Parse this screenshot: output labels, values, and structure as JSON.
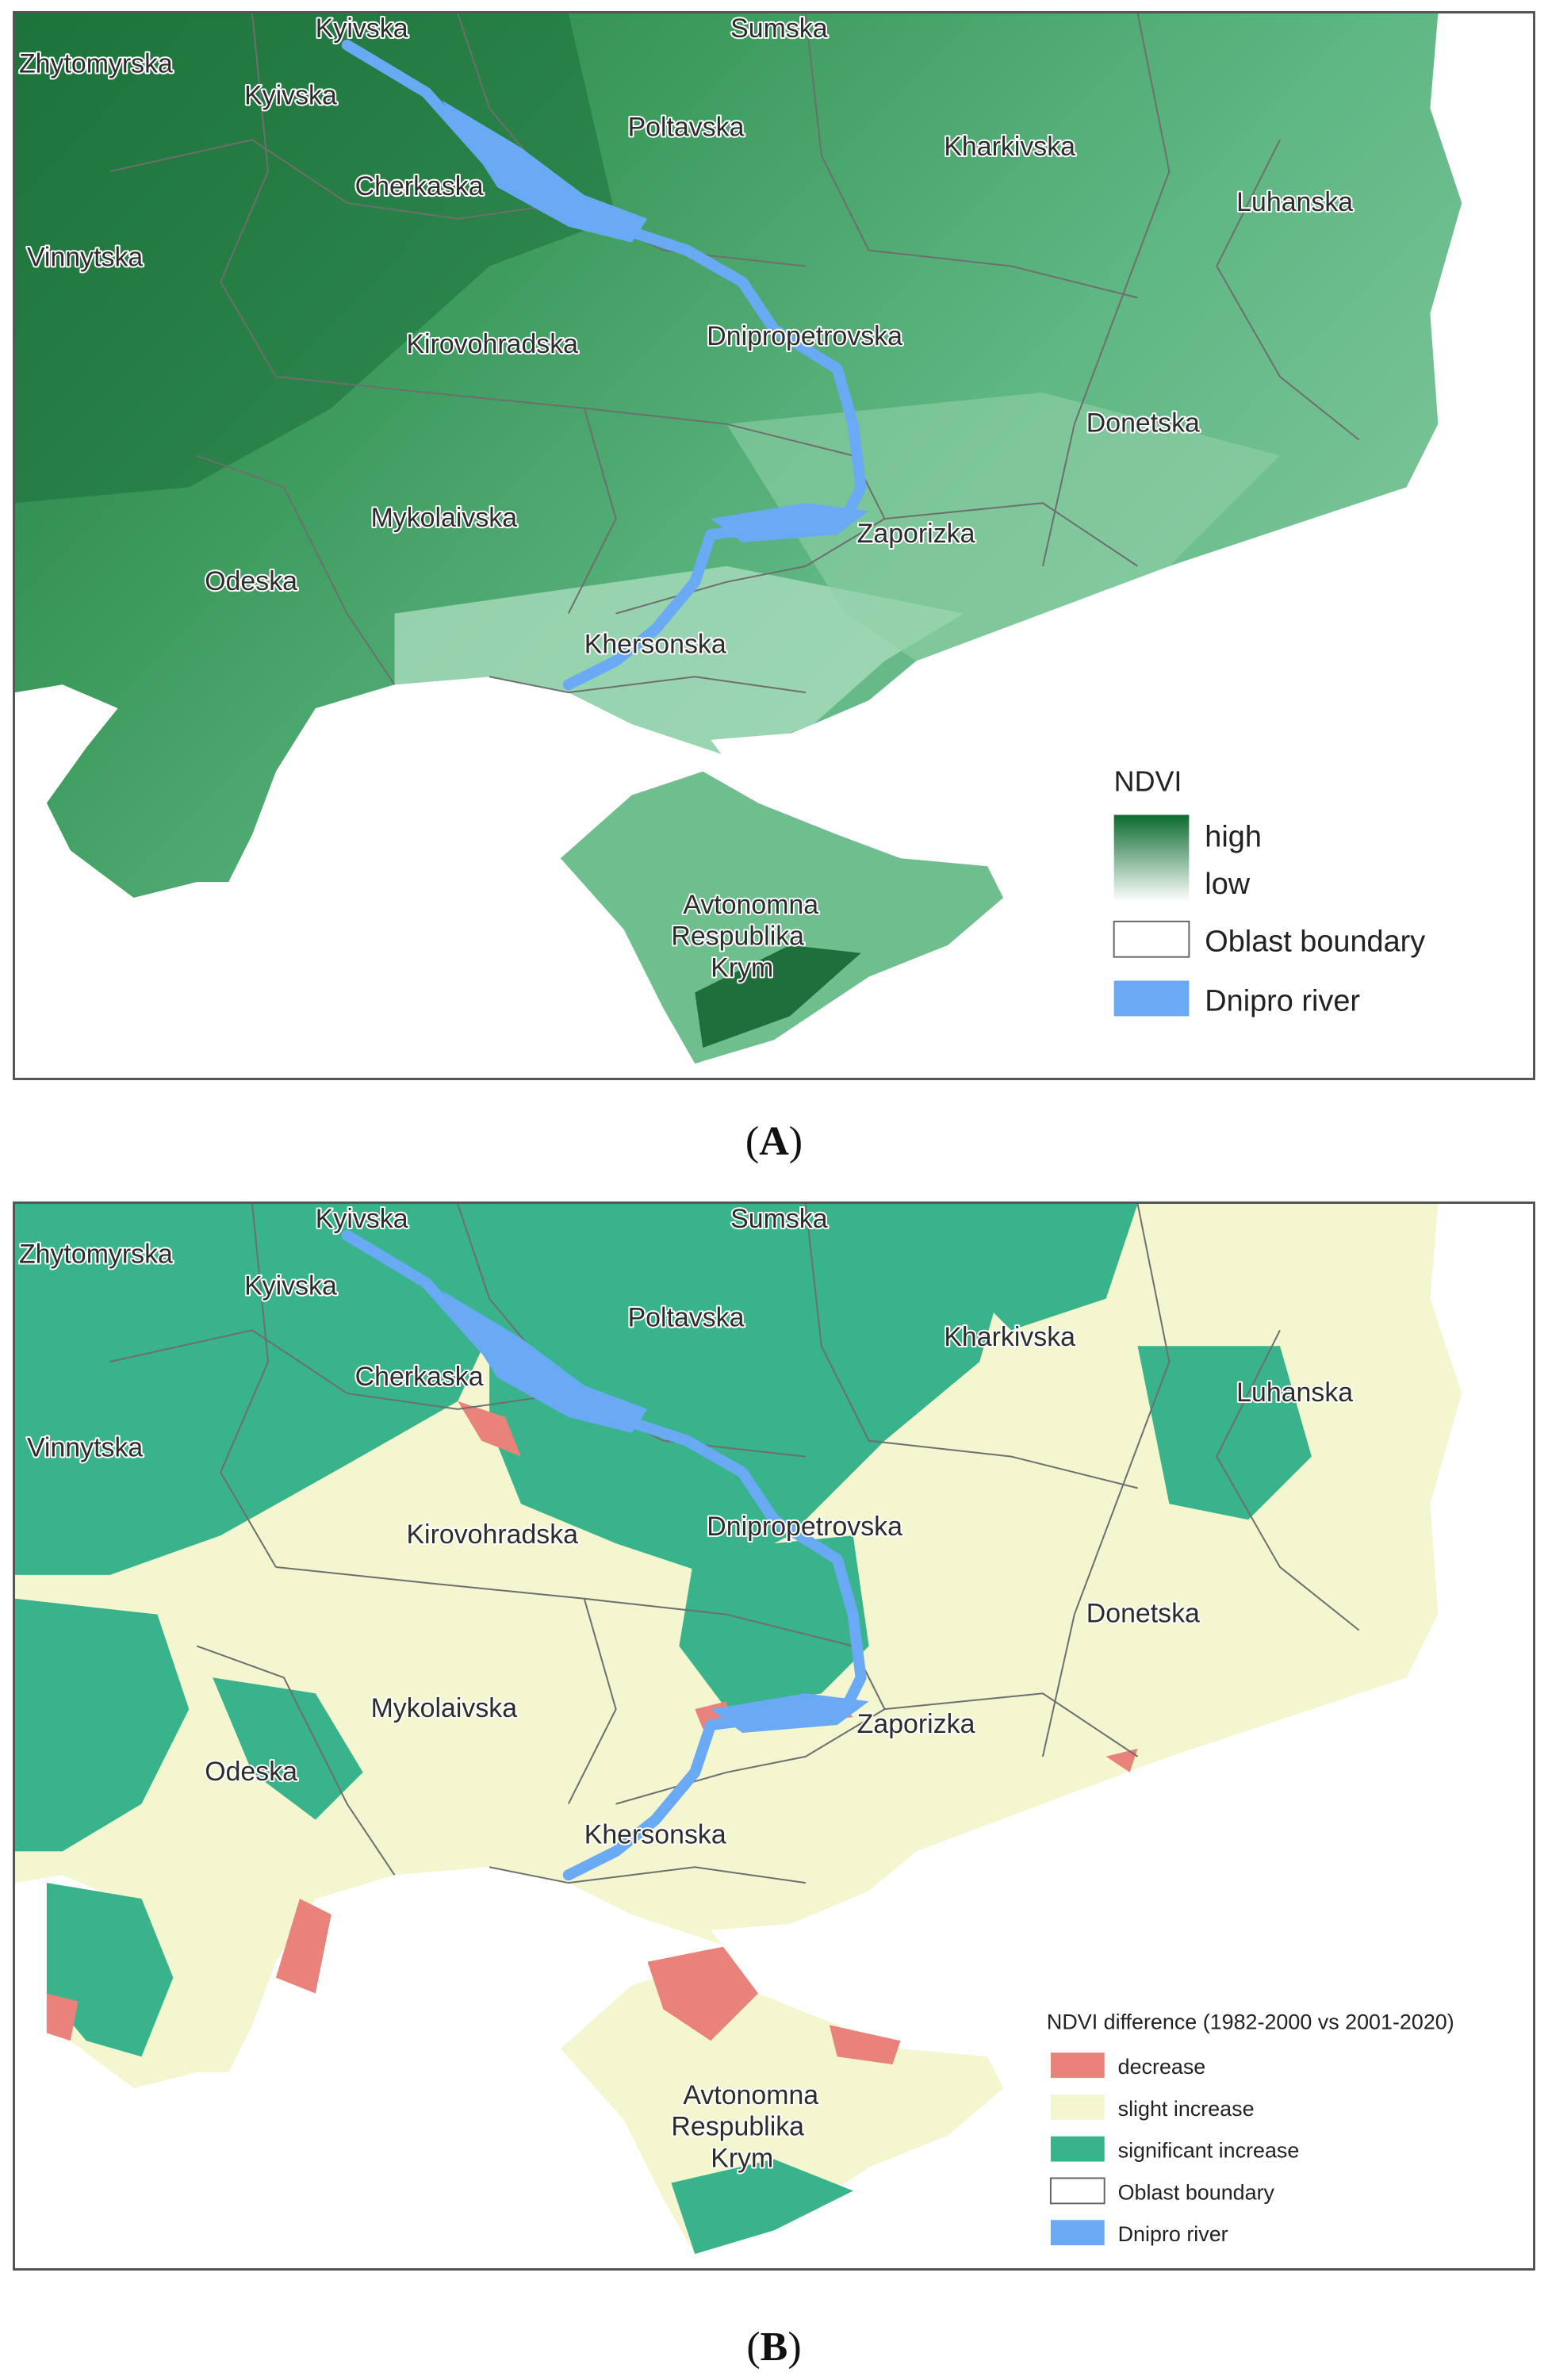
{
  "panels": {
    "a": {
      "caption_letter": "A",
      "legend": {
        "title": "NDVI",
        "gradient": {
          "high_label": "high",
          "low_label": "low",
          "high_color": "#0b6b2e",
          "low_color": "#ffffff"
        },
        "items": [
          {
            "label": "Oblast boundary",
            "swatch": "outline",
            "color": "#666666"
          },
          {
            "label": "Dnipro river",
            "swatch": "fill",
            "color": "#6aaaf5"
          }
        ]
      }
    },
    "b": {
      "caption_letter": "B",
      "legend": {
        "title": "NDVI difference (1982-2000   vs 2001-2020)",
        "items": [
          {
            "label": "decrease",
            "swatch": "fill",
            "color": "#e8827a"
          },
          {
            "label": "slight increase",
            "swatch": "fill",
            "color": "#f3f6cf"
          },
          {
            "label": "significant increase",
            "swatch": "fill",
            "color": "#38b38b"
          },
          {
            "label": "Oblast boundary",
            "swatch": "outline",
            "color": "#666666"
          },
          {
            "label": "Dnipro river",
            "swatch": "fill",
            "color": "#6aaaf5"
          }
        ]
      }
    }
  },
  "region_labels": [
    "Kyivska",
    "Sumska",
    "Zhytomyrska",
    "Kyivska",
    "Poltavska",
    "Kharkivska",
    "Cherkaska",
    "Luhanska",
    "Vinnytska",
    "Dnipropetrovska",
    "Kirovohradska",
    "Donetska",
    "Mykolaivska",
    "Zaporizka",
    "Odeska",
    "Khersonska",
    "Avtonomna",
    "Respublika",
    "Krym"
  ],
  "colors": {
    "ndvi_high": "#1f7a3e",
    "ndvi_mid": "#4fb07a",
    "ndvi_low": "#c9ead7",
    "sea": "#ffffff",
    "river": "#6aaaf5",
    "decrease": "#e8827a",
    "slight_increase": "#f3f6cf",
    "significant_increase": "#38b38b",
    "boundary": "#7a7a7a"
  }
}
